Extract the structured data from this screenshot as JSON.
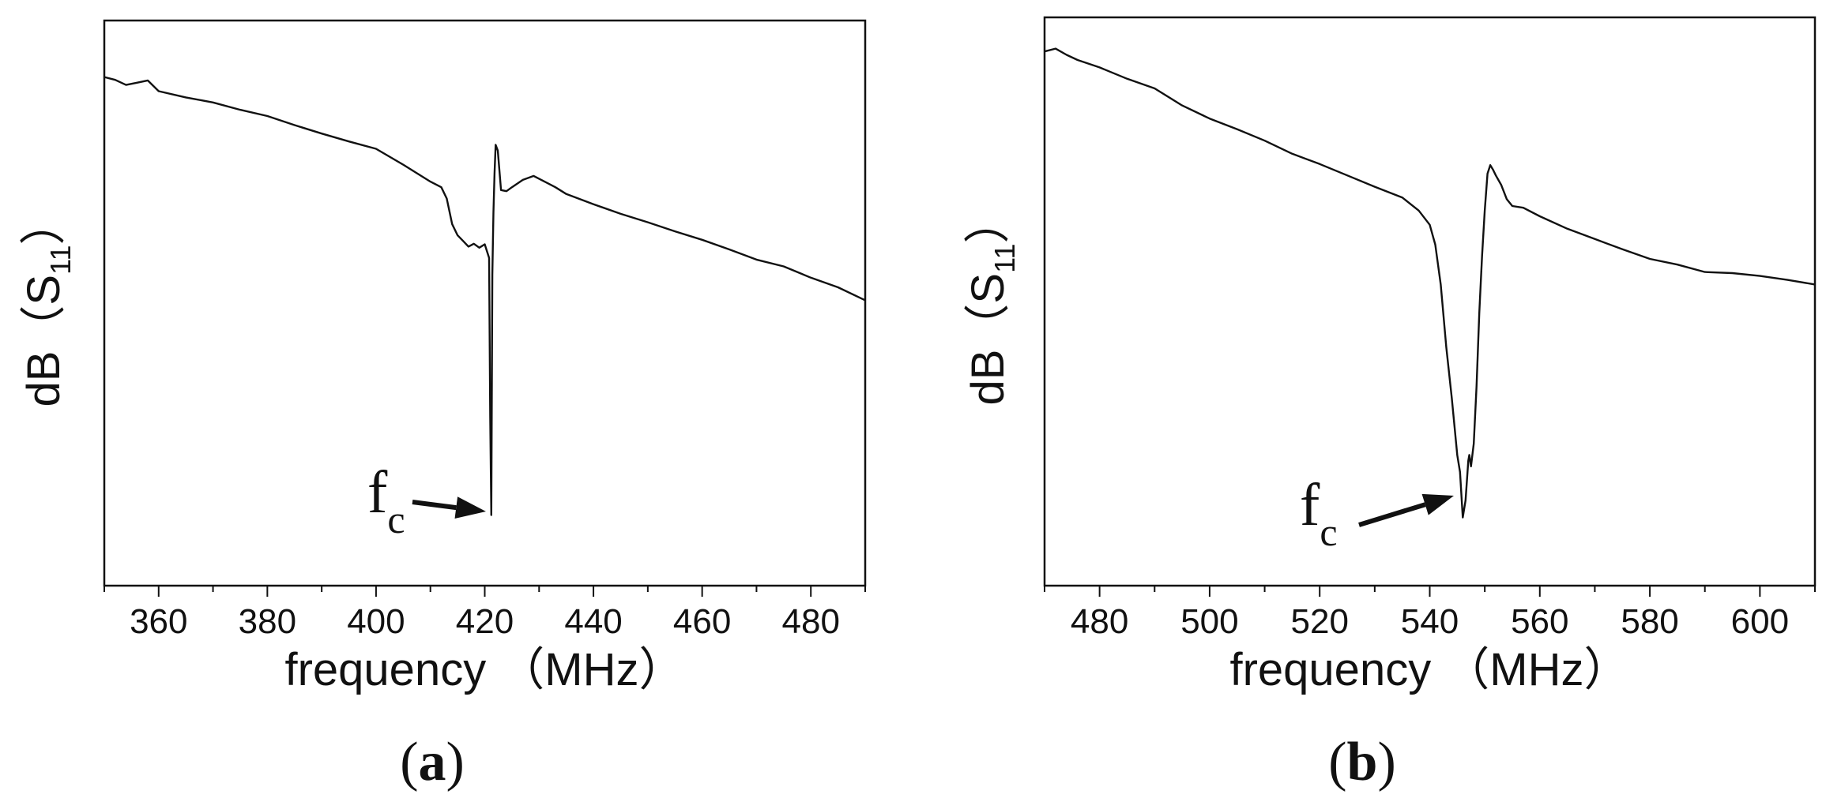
{
  "chart_data": [
    {
      "type": "line",
      "panel": "(a)",
      "panel_letter": "a",
      "xlabel": "frequency （MHz）",
      "ylabel": "dB（S",
      "ylabel_sub": "11",
      "ylabel_close": "）",
      "xlim": [
        350,
        490
      ],
      "ylim": [
        0,
        100
      ],
      "xticks": [
        360,
        380,
        400,
        420,
        440,
        460,
        480
      ],
      "grid": false,
      "annotation": {
        "text": "f",
        "sub": "c",
        "x": 421.3,
        "y": 12.5
      },
      "series": [
        {
          "x": [
            350,
            352,
            354,
            356,
            358,
            360,
            365,
            370,
            375,
            380,
            385,
            390,
            395,
            400,
            405,
            410,
            412,
            413,
            414,
            415,
            416,
            417,
            418,
            419,
            420,
            420.8,
            421.0,
            421.2,
            421.4,
            421.6,
            421.8,
            422.0,
            422.4,
            423,
            424,
            425,
            427,
            429,
            431,
            433,
            435,
            440,
            445,
            450,
            455,
            460,
            465,
            470,
            475,
            480,
            485,
            490
          ],
          "y": [
            90,
            89.5,
            88.6,
            89,
            89.4,
            87.5,
            86.4,
            85.5,
            84.2,
            83.1,
            81.5,
            80,
            78.6,
            77.3,
            74.5,
            71.5,
            70.5,
            68.5,
            64,
            62,
            61,
            60,
            60.5,
            59.8,
            60.4,
            58,
            30,
            12.5,
            55,
            66,
            73,
            78,
            77,
            70,
            69.8,
            70.5,
            71.8,
            72.5,
            71.5,
            70.5,
            69.3,
            67.5,
            65.8,
            64.3,
            62.7,
            61.2,
            59.5,
            57.7,
            56.5,
            54.5,
            52.8,
            50.5
          ]
        }
      ]
    },
    {
      "type": "line",
      "panel": "(b)",
      "panel_letter": "b",
      "xlabel": "frequency （MHz）",
      "ylabel": "dB（S",
      "ylabel_sub": "11",
      "ylabel_close": "）",
      "xlim": [
        470,
        610
      ],
      "ylim": [
        0,
        100
      ],
      "xticks": [
        480,
        500,
        520,
        540,
        560,
        580,
        600
      ],
      "grid": false,
      "annotation": {
        "text": "f",
        "sub": "c",
        "x": 546.5,
        "y": 12
      },
      "series": [
        {
          "x": [
            470,
            472,
            474,
            476,
            480,
            485,
            490,
            495,
            500,
            505,
            510,
            515,
            520,
            525,
            530,
            535,
            538,
            540,
            541,
            542,
            543,
            544,
            545,
            545.5,
            546,
            546.5,
            547,
            547.2,
            547.5,
            548,
            548.5,
            549,
            549.5,
            550,
            550.5,
            551,
            551.5,
            552,
            553,
            554,
            555,
            557,
            560,
            565,
            570,
            575,
            580,
            585,
            590,
            595,
            600,
            605,
            610
          ],
          "y": [
            94,
            94.5,
            93.4,
            92.5,
            91.2,
            89.2,
            87.5,
            84.5,
            82.2,
            80.3,
            78.3,
            76,
            74.2,
            72.2,
            70.2,
            68.3,
            66,
            63.5,
            60,
            53,
            42,
            33,
            23,
            20,
            12,
            15,
            22,
            23,
            21,
            25,
            35,
            48,
            58,
            66,
            72.5,
            74,
            73.2,
            72.2,
            70.5,
            68,
            66.8,
            66.5,
            65,
            62.8,
            61,
            59.2,
            57.5,
            56.5,
            55.2,
            55,
            54.5,
            53.8,
            53
          ]
        }
      ]
    }
  ]
}
